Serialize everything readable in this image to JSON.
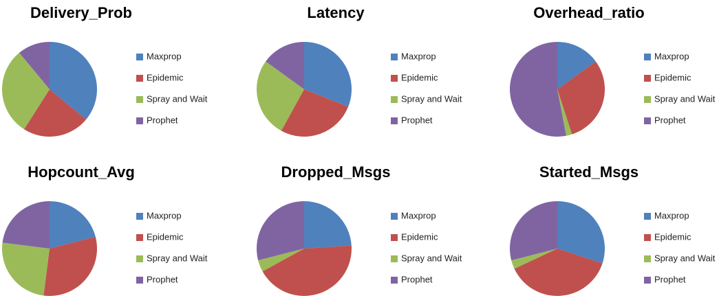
{
  "chart_data": [
    {
      "type": "pie",
      "title": "Delivery_Prob",
      "categories": [
        "Maxprop",
        "Epidemic",
        "Spray and Wait",
        "Prophet"
      ],
      "values": [
        36,
        23,
        30,
        11
      ],
      "colors": [
        "#4f81bd",
        "#c0504d",
        "#9bbb59",
        "#8064a2"
      ]
    },
    {
      "type": "pie",
      "title": "Latency",
      "categories": [
        "Maxprop",
        "Epidemic",
        "Spray and Wait",
        "Prophet"
      ],
      "values": [
        31,
        27,
        27,
        15
      ],
      "colors": [
        "#4f81bd",
        "#c0504d",
        "#9bbb59",
        "#8064a2"
      ]
    },
    {
      "type": "pie",
      "title": "Overhead_ratio",
      "categories": [
        "Maxprop",
        "Epidemic",
        "Spray and Wait",
        "Prophet"
      ],
      "values": [
        15,
        30,
        2,
        53
      ],
      "colors": [
        "#4f81bd",
        "#c0504d",
        "#9bbb59",
        "#8064a2"
      ]
    },
    {
      "type": "pie",
      "title": "Hopcount_Avg",
      "categories": [
        "Maxprop",
        "Epidemic",
        "Spray and Wait",
        "Prophet"
      ],
      "values": [
        21,
        31,
        25,
        23
      ],
      "colors": [
        "#4f81bd",
        "#c0504d",
        "#9bbb59",
        "#8064a2"
      ]
    },
    {
      "type": "pie",
      "title": "Dropped_Msgs",
      "categories": [
        "Maxprop",
        "Epidemic",
        "Spray and Wait",
        "Prophet"
      ],
      "values": [
        24,
        43,
        4,
        29
      ],
      "colors": [
        "#4f81bd",
        "#c0504d",
        "#9bbb59",
        "#8064a2"
      ]
    },
    {
      "type": "pie",
      "title": "Started_Msgs",
      "categories": [
        "Maxprop",
        "Epidemic",
        "Spray and Wait",
        "Prophet"
      ],
      "values": [
        30,
        38,
        3,
        29
      ],
      "colors": [
        "#4f81bd",
        "#c0504d",
        "#9bbb59",
        "#8064a2"
      ]
    }
  ]
}
